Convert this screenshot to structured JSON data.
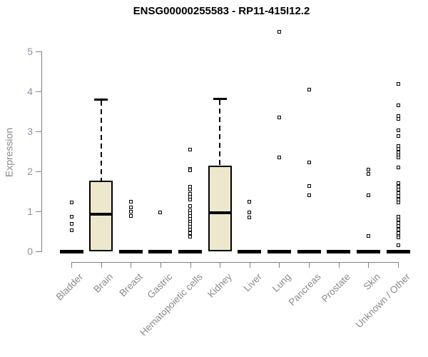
{
  "chart_data": {
    "type": "boxplot",
    "title": "ENSG00000255583 - RP11-415I12.2",
    "ylabel": "Expression",
    "xlabel": "",
    "ylim": [
      0,
      5.6
    ],
    "yticks": [
      0,
      1,
      2,
      3,
      4,
      5
    ],
    "grid": false,
    "legend": "none",
    "box_fill_color": "#EDE8CC",
    "box_border_color": "#000000",
    "axis_color": "#7F7F7F",
    "tick_label_color": "#8C8C8C",
    "categories": [
      "Bladder",
      "Brain",
      "Breast",
      "Gastric",
      "Hematopoietic cells",
      "Kidney",
      "Liver",
      "Lung",
      "Pancreas",
      "Prostate",
      "Skin",
      "Unknown / Other"
    ],
    "series": [
      {
        "name": "Bladder",
        "q1": 0,
        "median": 0,
        "q3": 0,
        "whisker_low": 0,
        "whisker_high": 0,
        "outliers": [
          1.23,
          0.86,
          0.68,
          0.52
        ]
      },
      {
        "name": "Brain",
        "q1": 0,
        "median": 0.93,
        "q3": 1.77,
        "whisker_low": 0,
        "whisker_high": 3.8,
        "outliers": []
      },
      {
        "name": "Breast",
        "q1": 0,
        "median": 0,
        "q3": 0,
        "whisker_low": 0,
        "whisker_high": 0,
        "outliers": [
          1.25,
          1.09,
          1.0,
          0.88
        ]
      },
      {
        "name": "Gastric",
        "q1": 0,
        "median": 0,
        "q3": 0,
        "whisker_low": 0,
        "whisker_high": 0,
        "outliers": [
          0.97
        ]
      },
      {
        "name": "Hematopoietic cells",
        "q1": 0,
        "median": 0,
        "q3": 0,
        "whisker_low": 0,
        "whisker_high": 0,
        "outliers": [
          2.55,
          2.07,
          2.02,
          1.61,
          1.54,
          1.43,
          1.36,
          1.29,
          1.13,
          1.02,
          0.96,
          0.89,
          0.82,
          0.75,
          0.68,
          0.61,
          0.54,
          0.45,
          0.36
        ]
      },
      {
        "name": "Kidney",
        "q1": 0,
        "median": 0.97,
        "q3": 2.15,
        "whisker_low": 0,
        "whisker_high": 3.83,
        "outliers": []
      },
      {
        "name": "Liver",
        "q1": 0,
        "median": 0,
        "q3": 0,
        "whisker_low": 0,
        "whisker_high": 0,
        "outliers": [
          1.25,
          0.98,
          0.84
        ]
      },
      {
        "name": "Lung",
        "q1": 0,
        "median": 0,
        "q3": 0,
        "whisker_low": 0,
        "whisker_high": 0,
        "outliers": [
          5.5,
          3.34,
          2.34
        ]
      },
      {
        "name": "Pancreas",
        "q1": 0,
        "median": 0,
        "q3": 0,
        "whisker_low": 0,
        "whisker_high": 0,
        "outliers": [
          4.05,
          2.23,
          1.63,
          1.41
        ]
      },
      {
        "name": "Prostate",
        "q1": 0,
        "median": 0,
        "q3": 0,
        "whisker_low": 0,
        "whisker_high": 0,
        "outliers": []
      },
      {
        "name": "Skin",
        "q1": 0,
        "median": 0,
        "q3": 0,
        "whisker_low": 0,
        "whisker_high": 0,
        "outliers": [
          2.04,
          1.93,
          1.41,
          0.39
        ]
      },
      {
        "name": "Unknown / Other",
        "q1": 0,
        "median": 0,
        "q3": 0,
        "whisker_low": 0,
        "whisker_high": 0,
        "outliers": [
          4.18,
          3.66,
          3.39,
          3.32,
          3.02,
          2.89,
          2.64,
          2.57,
          2.48,
          2.41,
          2.34,
          2.09,
          1.7,
          1.61,
          1.54,
          1.46,
          1.38,
          1.3,
          1.23,
          0.86,
          0.79,
          0.7,
          0.63,
          0.55,
          0.45,
          0.38,
          0.34,
          0.16
        ]
      }
    ]
  }
}
